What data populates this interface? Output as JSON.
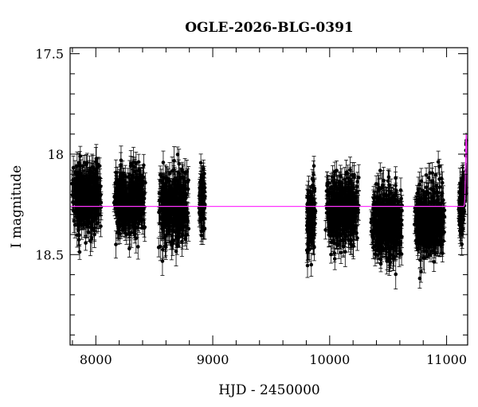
{
  "chart_data": {
    "type": "scatter",
    "title": "OGLE-2026-BLG-0391",
    "xlabel": "HJD - 2450000",
    "ylabel": "I magnitude",
    "xlim": [
      7780,
      11180
    ],
    "ylim": [
      18.95,
      17.47
    ],
    "y_inverted": true,
    "grid": false,
    "legend": "none",
    "x_ticks": [
      8000,
      9000,
      10000,
      11000
    ],
    "x_tick_labels": [
      "8000",
      "9000",
      "10000",
      "11000"
    ],
    "y_ticks": [
      17.5,
      18,
      18.5
    ],
    "y_tick_labels": [
      "17.5",
      "18",
      "18.5"
    ],
    "baseline_magnitude": 18.26,
    "colors": {
      "points": "#000000",
      "model": "#ff33ff"
    },
    "series": [
      {
        "kind": "observations_with_errorbars",
        "seasons": [
          {
            "x_range": [
              7790,
              8050
            ],
            "center_mag": 18.22,
            "scatter": 0.09,
            "err": 0.05
          },
          {
            "x_range": [
              8150,
              8430
            ],
            "center_mag": 18.24,
            "scatter": 0.09,
            "err": 0.05
          },
          {
            "x_range": [
              8530,
              8800
            ],
            "center_mag": 18.26,
            "scatter": 0.1,
            "err": 0.05
          },
          {
            "x_range": [
              8880,
              8940
            ],
            "center_mag": 18.24,
            "scatter": 0.08,
            "err": 0.05
          },
          {
            "x_range": [
              9800,
              9880
            ],
            "center_mag": 18.32,
            "scatter": 0.11,
            "err": 0.05
          },
          {
            "x_range": [
              9960,
              10250
            ],
            "center_mag": 18.28,
            "scatter": 0.09,
            "err": 0.05
          },
          {
            "x_range": [
              10350,
              10630
            ],
            "center_mag": 18.34,
            "scatter": 0.1,
            "err": 0.05
          },
          {
            "x_range": [
              10720,
              10990
            ],
            "center_mag": 18.33,
            "scatter": 0.1,
            "err": 0.05
          },
          {
            "x_range": [
              11100,
              11160
            ],
            "center_mag": 18.25,
            "scatter": 0.08,
            "err": 0.05
          }
        ],
        "peak": {
          "x": 11168,
          "mag": 17.88
        }
      },
      {
        "kind": "model_curve",
        "baseline": 18.26,
        "peak_x": 11168,
        "peak_mag": 17.9,
        "width_days": 6
      }
    ]
  }
}
